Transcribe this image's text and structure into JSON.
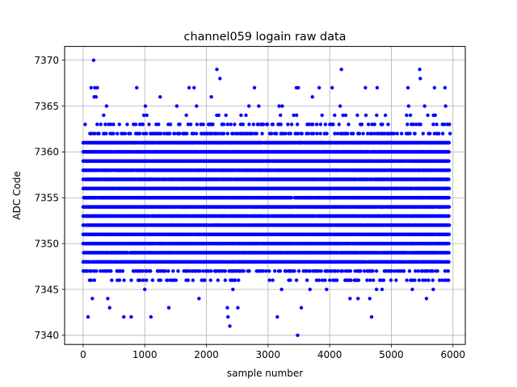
{
  "chart_data": {
    "type": "scatter",
    "title": "channel059 logain raw data",
    "xlabel": "sample number",
    "ylabel": "ADC Code",
    "xlim": [
      -300,
      6200
    ],
    "ylim": [
      7339,
      7371.5
    ],
    "xticks": [
      0,
      1000,
      2000,
      3000,
      4000,
      5000,
      6000
    ],
    "xtick_labels": [
      "0",
      "1000",
      "2000",
      "3000",
      "4000",
      "5000",
      "6000"
    ],
    "yticks": [
      7340,
      7345,
      7350,
      7355,
      7360,
      7365,
      7370
    ],
    "ytick_labels": [
      "7340",
      "7345",
      "7350",
      "7355",
      "7360",
      "7365",
      "7370"
    ],
    "grid": true,
    "marker_color": "#0000ff",
    "n_samples": 6000,
    "x_range": [
      0,
      5940
    ],
    "dense_band": [
      7348,
      7361
    ],
    "sparse_band": [
      7346,
      7364
    ],
    "outliers": [
      {
        "x": 170,
        "y": 7370
      },
      {
        "x": 130,
        "y": 7367
      },
      {
        "x": 190,
        "y": 7367
      },
      {
        "x": 230,
        "y": 7367
      },
      {
        "x": 180,
        "y": 7366
      },
      {
        "x": 210,
        "y": 7366
      },
      {
        "x": 380,
        "y": 7365
      },
      {
        "x": 870,
        "y": 7367
      },
      {
        "x": 1010,
        "y": 7365
      },
      {
        "x": 1250,
        "y": 7366
      },
      {
        "x": 1520,
        "y": 7365
      },
      {
        "x": 1720,
        "y": 7367
      },
      {
        "x": 1800,
        "y": 7367
      },
      {
        "x": 1840,
        "y": 7365
      },
      {
        "x": 2170,
        "y": 7369
      },
      {
        "x": 2220,
        "y": 7368
      },
      {
        "x": 2080,
        "y": 7366
      },
      {
        "x": 2690,
        "y": 7365
      },
      {
        "x": 2780,
        "y": 7367
      },
      {
        "x": 2850,
        "y": 7365
      },
      {
        "x": 3180,
        "y": 7365
      },
      {
        "x": 3230,
        "y": 7365
      },
      {
        "x": 3460,
        "y": 7367
      },
      {
        "x": 3490,
        "y": 7367
      },
      {
        "x": 3720,
        "y": 7366
      },
      {
        "x": 3830,
        "y": 7367
      },
      {
        "x": 4040,
        "y": 7367
      },
      {
        "x": 4190,
        "y": 7369
      },
      {
        "x": 4170,
        "y": 7365
      },
      {
        "x": 4580,
        "y": 7367
      },
      {
        "x": 4770,
        "y": 7367
      },
      {
        "x": 5270,
        "y": 7367
      },
      {
        "x": 5280,
        "y": 7365
      },
      {
        "x": 5460,
        "y": 7369
      },
      {
        "x": 5470,
        "y": 7368
      },
      {
        "x": 5540,
        "y": 7365
      },
      {
        "x": 5700,
        "y": 7367
      },
      {
        "x": 5870,
        "y": 7367
      },
      {
        "x": 5880,
        "y": 7365
      },
      {
        "x": 80,
        "y": 7342
      },
      {
        "x": 150,
        "y": 7344
      },
      {
        "x": 400,
        "y": 7344
      },
      {
        "x": 430,
        "y": 7343
      },
      {
        "x": 660,
        "y": 7342
      },
      {
        "x": 780,
        "y": 7342
      },
      {
        "x": 1000,
        "y": 7345
      },
      {
        "x": 1100,
        "y": 7342
      },
      {
        "x": 1390,
        "y": 7343
      },
      {
        "x": 1880,
        "y": 7344
      },
      {
        "x": 2340,
        "y": 7343
      },
      {
        "x": 2350,
        "y": 7342
      },
      {
        "x": 2380,
        "y": 7341
      },
      {
        "x": 2430,
        "y": 7345
      },
      {
        "x": 2510,
        "y": 7343
      },
      {
        "x": 3150,
        "y": 7342
      },
      {
        "x": 3220,
        "y": 7345
      },
      {
        "x": 3480,
        "y": 7340
      },
      {
        "x": 3540,
        "y": 7343
      },
      {
        "x": 3680,
        "y": 7345
      },
      {
        "x": 3950,
        "y": 7345
      },
      {
        "x": 4330,
        "y": 7344
      },
      {
        "x": 4460,
        "y": 7344
      },
      {
        "x": 4650,
        "y": 7344
      },
      {
        "x": 4680,
        "y": 7342
      },
      {
        "x": 4760,
        "y": 7345
      },
      {
        "x": 4850,
        "y": 7345
      },
      {
        "x": 5340,
        "y": 7345
      },
      {
        "x": 5570,
        "y": 7344
      },
      {
        "x": 5680,
        "y": 7345
      }
    ]
  }
}
